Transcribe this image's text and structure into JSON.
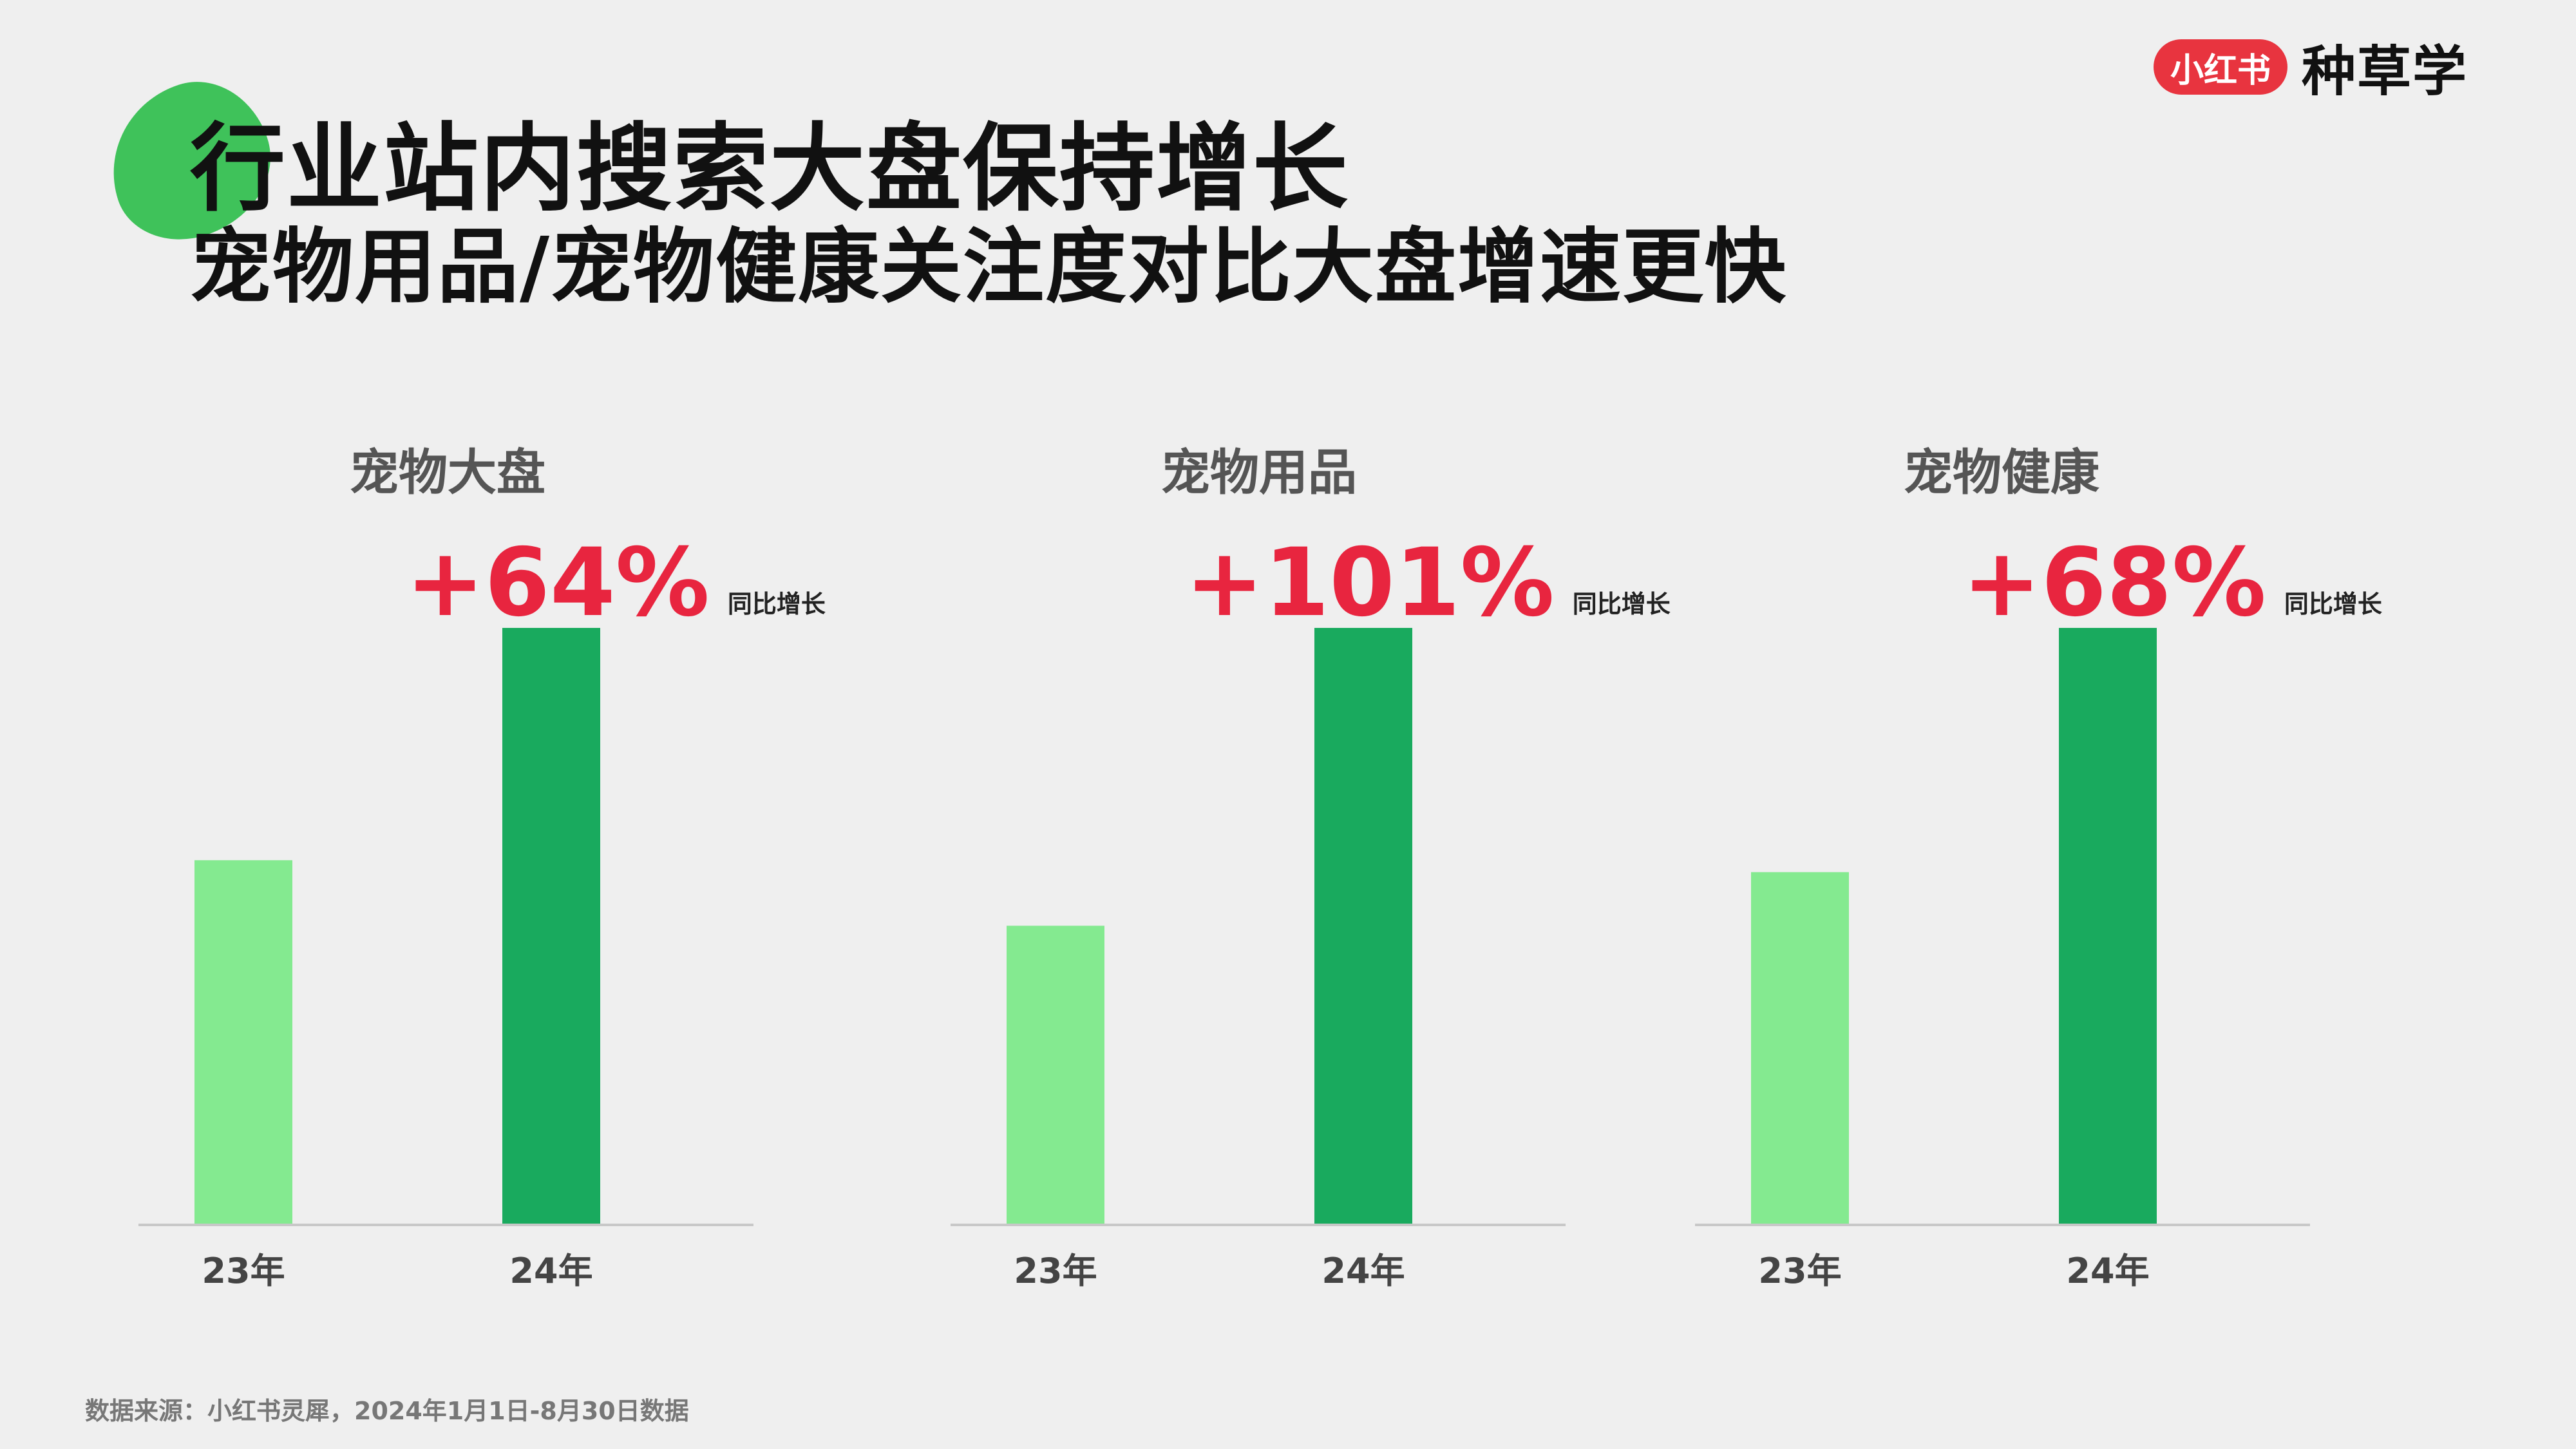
{
  "header": {
    "title": "行业站内搜索大盘保持增长",
    "subtitle": "宠物用品/宠物健康关注度对比大盘增速更快"
  },
  "brand": {
    "badge": "小红书",
    "name": "种草学"
  },
  "footer": {
    "source": "数据来源：小红书灵犀，2024年1月1日-8月30日数据"
  },
  "colors": {
    "bar_23": "#84ea90",
    "bar_24": "#19aa5e",
    "growth": "#e8253f",
    "accent_blob": "#3fc25a",
    "brand_badge": "#e8343f"
  },
  "chart_data": [
    {
      "type": "bar",
      "title": "宠物大盘",
      "categories": [
        "23年",
        "24年"
      ],
      "values": [
        61,
        100
      ],
      "growth": "+64%",
      "growth_label": "同比增长"
    },
    {
      "type": "bar",
      "title": "宠物用品",
      "categories": [
        "23年",
        "24年"
      ],
      "values": [
        50,
        100
      ],
      "growth": "+101%",
      "growth_label": "同比增长"
    },
    {
      "type": "bar",
      "title": "宠物健康",
      "categories": [
        "23年",
        "24年"
      ],
      "values": [
        59,
        100
      ],
      "growth": "+68%",
      "growth_label": "同比增长"
    }
  ]
}
